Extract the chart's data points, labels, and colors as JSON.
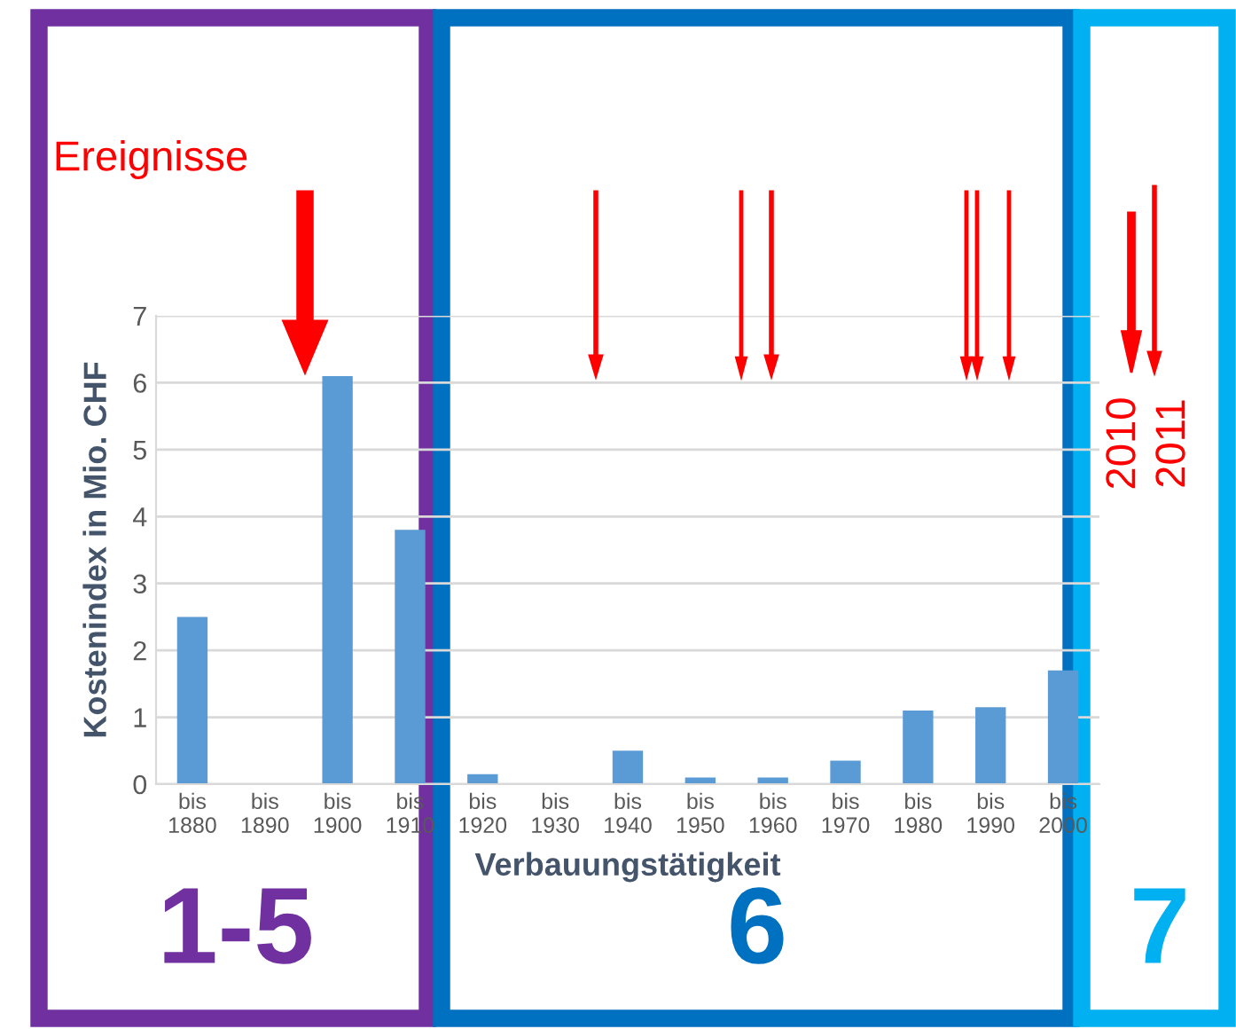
{
  "chart_data": {
    "type": "bar",
    "xlabel": "Verbauungstätigkeit",
    "ylabel": "Kostenindex in Mio. CHF",
    "categories": [
      "bis\n1880",
      "bis\n1890",
      "bis\n1900",
      "bis\n1910",
      "bis\n1920",
      "bis\n1930",
      "bis\n1940",
      "bis\n1950",
      "bis\n1960",
      "bis\n1970",
      "bis\n1980",
      "bis\n1990",
      "bis\n2000"
    ],
    "values": [
      2.5,
      0,
      6.1,
      3.8,
      0.15,
      0,
      0.5,
      0.1,
      0.1,
      0.35,
      1.1,
      1.15,
      1.7
    ],
    "color": "#5b9bd5",
    "ylim": [
      0,
      7
    ],
    "yticks": [
      0,
      1,
      2,
      3,
      4,
      5,
      6,
      7
    ],
    "grid": "y",
    "annotations": [
      "Ereignisse",
      "2010",
      "2011",
      "1-5",
      "6",
      "7"
    ]
  }
}
